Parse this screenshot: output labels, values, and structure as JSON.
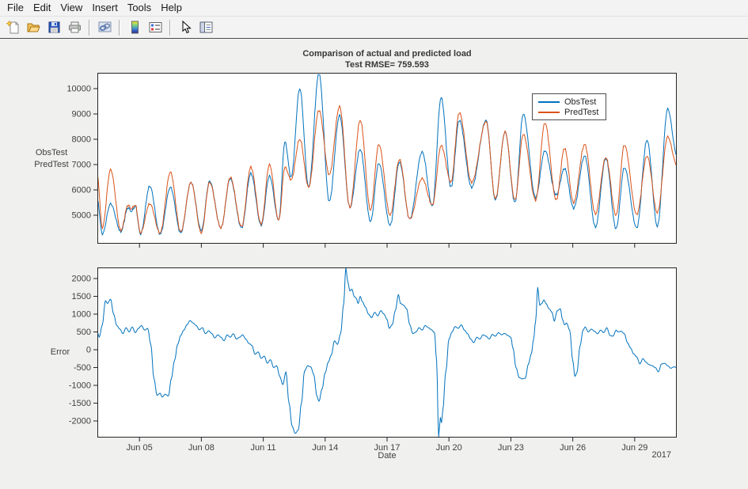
{
  "window": {
    "menu_items": [
      "File",
      "Edit",
      "View",
      "Insert",
      "Tools",
      "Help"
    ],
    "toolbar_icons": [
      "new-figure",
      "open-file",
      "save-figure",
      "print-figure",
      "link-plot",
      "insert-colorbar",
      "insert-legend",
      "edit-plot",
      "property-inspector"
    ]
  },
  "chart_data": [
    {
      "id": "top",
      "type": "line",
      "title": "Comparison of actual and predicted load",
      "subtitle": "Test RMSE= 759.593",
      "ylabel_lines": [
        "ObsTest",
        "PredTest"
      ],
      "x_unit": "day of June 2017",
      "xlim": [
        2.96,
        31.04
      ],
      "ylim": [
        3875,
        10625
      ],
      "yticks": [
        5000,
        6000,
        7000,
        8000,
        9000,
        10000
      ],
      "xtick_values": [
        5,
        8,
        11,
        14,
        17,
        20,
        23,
        26,
        29
      ],
      "xtick_labels": [
        "Jun 05",
        "Jun 08",
        "Jun 11",
        "Jun 14",
        "Jun 17",
        "Jun 20",
        "Jun 23",
        "Jun 26",
        "Jun 29"
      ],
      "show_xtick_labels": false,
      "grid": false,
      "legend": {
        "position": "northeast",
        "entries": [
          "ObsTest",
          "PredTest"
        ]
      },
      "series": [
        {
          "name": "ObsTest",
          "color": "#0072BD",
          "texture": 55,
          "x": [
            2.96,
            3.2,
            3.6,
            4.1,
            4.45,
            4.6,
            4.8,
            5.05,
            5.5,
            6.0,
            6.5,
            7.0,
            7.5,
            8.0,
            8.4,
            8.95,
            9.4,
            9.95,
            10.4,
            10.9,
            11.3,
            11.75,
            12.05,
            12.35,
            12.77,
            13.2,
            13.7,
            14.2,
            14.7,
            15.2,
            15.7,
            16.2,
            16.6,
            17.15,
            17.6,
            18.1,
            18.7,
            19.2,
            19.62,
            20.1,
            20.5,
            21.1,
            21.8,
            22.25,
            22.72,
            23.2,
            23.6,
            24.2,
            24.65,
            25.2,
            25.6,
            26.04,
            26.58,
            27.1,
            27.6,
            28.1,
            28.5,
            29.1,
            29.6,
            30.1,
            30.6,
            31.04
          ],
          "values": [
            5600,
            4250,
            5450,
            4350,
            5300,
            5150,
            5350,
            4250,
            6150,
            4250,
            6100,
            4300,
            6300,
            4400,
            6350,
            4500,
            6450,
            4500,
            6650,
            4600,
            6550,
            4800,
            7900,
            6500,
            10000,
            6100,
            10600,
            5550,
            8950,
            5300,
            7600,
            4750,
            7050,
            4600,
            7100,
            4850,
            7500,
            5350,
            9650,
            6100,
            8750,
            6100,
            8750,
            5600,
            8300,
            5500,
            9000,
            5700,
            7550,
            5800,
            6850,
            5280,
            7340,
            4530,
            7250,
            4470,
            6880,
            4500,
            7970,
            4560,
            9200,
            7400
          ]
        },
        {
          "name": "PredTest",
          "color": "#D95319",
          "texture": 55,
          "x": [
            2.96,
            3.2,
            3.6,
            4.1,
            4.45,
            4.6,
            4.8,
            5.05,
            5.5,
            6.0,
            6.5,
            7.0,
            7.5,
            8.0,
            8.4,
            8.95,
            9.4,
            9.95,
            10.4,
            10.9,
            11.3,
            11.75,
            12.05,
            12.35,
            12.77,
            13.2,
            13.7,
            14.2,
            14.7,
            15.2,
            15.7,
            16.2,
            16.6,
            17.15,
            17.6,
            18.1,
            18.7,
            19.2,
            19.62,
            20.1,
            20.5,
            21.1,
            21.8,
            22.25,
            22.72,
            23.2,
            23.6,
            24.2,
            24.65,
            25.2,
            25.6,
            26.04,
            26.58,
            27.1,
            27.6,
            28.1,
            28.5,
            29.1,
            29.6,
            30.1,
            30.6,
            31.04
          ],
          "values": [
            6550,
            4500,
            6800,
            4400,
            5400,
            5250,
            5400,
            4300,
            5450,
            4300,
            6700,
            4350,
            6300,
            4300,
            6300,
            4500,
            6500,
            4550,
            6900,
            4650,
            7000,
            4800,
            6900,
            6400,
            8000,
            6100,
            9150,
            6600,
            9300,
            5300,
            8750,
            5200,
            7800,
            5000,
            7200,
            4850,
            6450,
            5400,
            7750,
            6300,
            9050,
            6300,
            8700,
            5650,
            8300,
            5600,
            8200,
            5600,
            8650,
            5600,
            7650,
            5500,
            7800,
            5050,
            7280,
            5000,
            7780,
            5030,
            7340,
            5100,
            8100,
            7000
          ]
        }
      ]
    },
    {
      "id": "bottom",
      "type": "line",
      "ylabel": "Error",
      "xlabel": "Date",
      "xaxis_year_label": "2017",
      "x_unit": "day of June 2017",
      "xlim": [
        2.96,
        31.04
      ],
      "ylim": [
        -2467,
        2311
      ],
      "yticks": [
        -2000,
        -1500,
        -1000,
        -500,
        0,
        500,
        1000,
        1500,
        2000
      ],
      "xtick_values": [
        5,
        8,
        11,
        14,
        17,
        20,
        23,
        26,
        29
      ],
      "xtick_labels": [
        "Jun 05",
        "Jun 08",
        "Jun 11",
        "Jun 14",
        "Jun 17",
        "Jun 20",
        "Jun 23",
        "Jun 26",
        "Jun 29"
      ],
      "show_xtick_labels": true,
      "grid": false,
      "series": [
        {
          "name": "Error",
          "color": "#0072BD",
          "texture": 0,
          "x": [
            2.96,
            3.05,
            3.2,
            3.35,
            3.45,
            3.6,
            3.75,
            3.9,
            4.05,
            4.2,
            4.35,
            4.5,
            4.65,
            4.8,
            4.95,
            5.1,
            5.25,
            5.4,
            5.55,
            5.7,
            5.85,
            6.0,
            6.1,
            6.25,
            6.4,
            6.55,
            6.7,
            6.85,
            7.0,
            7.15,
            7.3,
            7.45,
            7.6,
            7.75,
            7.9,
            8.05,
            8.2,
            8.35,
            8.5,
            8.65,
            8.8,
            8.95,
            9.1,
            9.25,
            9.4,
            9.55,
            9.7,
            9.85,
            10.0,
            10.15,
            10.3,
            10.45,
            10.6,
            10.75,
            10.9,
            11.05,
            11.2,
            11.35,
            11.5,
            11.65,
            11.8,
            11.95,
            12.1,
            12.25,
            12.4,
            12.55,
            12.7,
            12.85,
            13.0,
            13.15,
            13.3,
            13.45,
            13.6,
            13.7,
            13.85,
            14.0,
            14.15,
            14.3,
            14.45,
            14.6,
            14.75,
            14.9,
            15.0,
            15.1,
            15.2,
            15.3,
            15.4,
            15.5,
            15.6,
            15.7,
            15.8,
            15.95,
            16.1,
            16.25,
            16.4,
            16.55,
            16.7,
            16.85,
            17.0,
            17.1,
            17.25,
            17.4,
            17.55,
            17.65,
            17.8,
            17.95,
            18.1,
            18.25,
            18.4,
            18.55,
            18.7,
            18.85,
            19.0,
            19.15,
            19.3,
            19.4,
            19.5,
            19.58,
            19.64,
            19.7,
            19.85,
            20.0,
            20.15,
            20.3,
            20.45,
            20.6,
            20.75,
            20.9,
            21.05,
            21.2,
            21.35,
            21.5,
            21.65,
            21.8,
            21.95,
            22.1,
            22.25,
            22.4,
            22.55,
            22.7,
            22.85,
            23.0,
            23.1,
            23.25,
            23.4,
            23.55,
            23.7,
            23.85,
            24.0,
            24.1,
            24.2,
            24.3,
            24.4,
            24.5,
            24.6,
            24.7,
            24.85,
            25.0,
            25.1,
            25.25,
            25.4,
            25.5,
            25.6,
            25.7,
            25.85,
            26.0,
            26.1,
            26.2,
            26.35,
            26.5,
            26.6,
            26.75,
            26.9,
            27.05,
            27.2,
            27.35,
            27.5,
            27.65,
            27.8,
            27.95,
            28.1,
            28.2,
            28.35,
            28.5,
            28.65,
            28.8,
            28.95,
            29.1,
            29.25,
            29.4,
            29.55,
            29.7,
            29.85,
            30.0,
            30.15,
            30.3,
            30.45,
            30.6,
            30.75,
            30.9,
            31.04
          ],
          "values": [
            500,
            350,
            700,
            1380,
            1300,
            1420,
            1000,
            680,
            580,
            450,
            620,
            500,
            640,
            480,
            600,
            680,
            550,
            600,
            150,
            -800,
            -1280,
            -1220,
            -1330,
            -1250,
            -1300,
            -800,
            -300,
            150,
            400,
            550,
            700,
            820,
            750,
            680,
            560,
            620,
            450,
            530,
            460,
            330,
            420,
            350,
            250,
            420,
            350,
            450,
            300,
            350,
            420,
            300,
            180,
            120,
            -130,
            -60,
            -240,
            -180,
            -380,
            -280,
            -500,
            -450,
            -750,
            -980,
            -620,
            -1500,
            -2150,
            -2350,
            -2250,
            -1500,
            -600,
            -450,
            -480,
            -700,
            -1300,
            -1450,
            -1100,
            -650,
            -350,
            -150,
            250,
            150,
            450,
            1300,
            2300,
            1900,
            1650,
            1700,
            1500,
            1450,
            1300,
            1500,
            1350,
            1200,
            1000,
            900,
            1050,
            950,
            1100,
            1000,
            850,
            600,
            700,
            1100,
            1550,
            1300,
            1250,
            1150,
            700,
            450,
            500,
            620,
            550,
            680,
            620,
            560,
            480,
            -300,
            -2450,
            -1900,
            -2050,
            -1700,
            -600,
            300,
            500,
            650,
            600,
            700,
            550,
            450,
            300,
            200,
            350,
            300,
            420,
            380,
            300,
            430,
            380,
            480,
            420,
            460,
            400,
            350,
            50,
            -500,
            -780,
            -820,
            -800,
            -400,
            -100,
            300,
            800,
            1750,
            1250,
            1300,
            1400,
            1300,
            1150,
            1050,
            800,
            1100,
            1150,
            850,
            700,
            750,
            550,
            -300,
            -750,
            -650,
            100,
            550,
            640,
            500,
            580,
            520,
            450,
            550,
            480,
            620,
            400,
            380,
            550,
            500,
            520,
            450,
            200,
            50,
            -120,
            -200,
            -400,
            -250,
            -350,
            -420,
            -450,
            -500,
            -620,
            -400,
            -380,
            -450,
            -520,
            -480,
            -500
          ]
        }
      ]
    }
  ]
}
